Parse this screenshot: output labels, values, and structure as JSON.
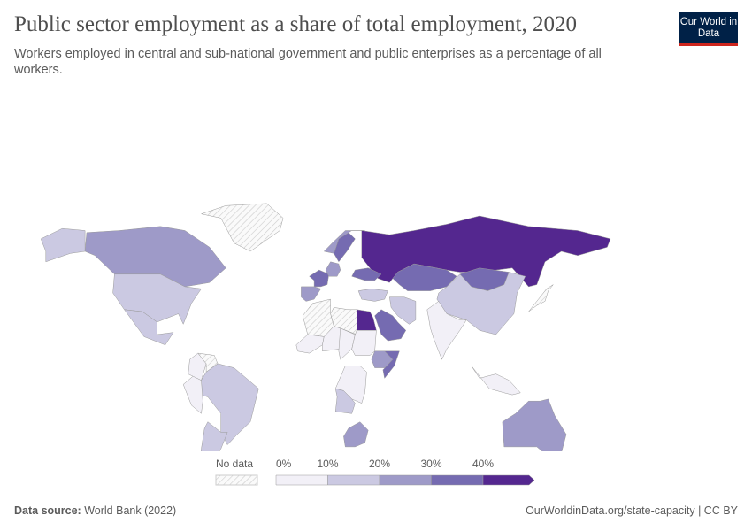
{
  "header": {
    "title": "Public sector employment as a share of total employment, 2020",
    "subtitle": "Workers employed in central and sub-national government and public enterprises as a percentage of all workers.",
    "logo": "Our World in Data"
  },
  "legend": {
    "no_data_label": "No data",
    "ticks": [
      "0%",
      "10%",
      "20%",
      "30%",
      "40%"
    ],
    "colors": [
      "#f2f0f7",
      "#cbc9e2",
      "#9e9ac8",
      "#756bb1",
      "#54278f"
    ],
    "no_data_color": "#e8e8e8"
  },
  "countries": [
    {
      "name": "Russia",
      "bin": 4
    },
    {
      "name": "Kazakhstan",
      "bin": 3
    },
    {
      "name": "Mongolia",
      "bin": 3
    },
    {
      "name": "China",
      "bin": 1
    },
    {
      "name": "India",
      "bin": 0
    },
    {
      "name": "Canada",
      "bin": 2
    },
    {
      "name": "United States",
      "bin": 1
    },
    {
      "name": "Alaska",
      "bin": 1
    },
    {
      "name": "Mexico",
      "bin": 1
    },
    {
      "name": "Greenland",
      "bin": -1
    },
    {
      "name": "Brazil",
      "bin": 1
    },
    {
      "name": "Argentina",
      "bin": 1
    },
    {
      "name": "Peru",
      "bin": 0
    },
    {
      "name": "Colombia",
      "bin": 0
    },
    {
      "name": "Venezuela",
      "bin": -1
    },
    {
      "name": "Australia",
      "bin": 2
    },
    {
      "name": "Egypt",
      "bin": 4
    },
    {
      "name": "Saudi Arabia",
      "bin": 3
    },
    {
      "name": "Iran",
      "bin": 1
    },
    {
      "name": "Libya",
      "bin": -1
    },
    {
      "name": "Algeria",
      "bin": -1
    },
    {
      "name": "Mali",
      "bin": 0
    },
    {
      "name": "Niger",
      "bin": 0
    },
    {
      "name": "Chad",
      "bin": 0
    },
    {
      "name": "Sudan",
      "bin": 0
    },
    {
      "name": "DR Congo",
      "bin": 0
    },
    {
      "name": "Angola",
      "bin": 1
    },
    {
      "name": "South Africa",
      "bin": 2
    },
    {
      "name": "Ethiopia",
      "bin": 2
    },
    {
      "name": "Somalia",
      "bin": 3
    },
    {
      "name": "Sweden",
      "bin": 3
    },
    {
      "name": "Norway",
      "bin": 2
    },
    {
      "name": "France",
      "bin": 3
    },
    {
      "name": "Spain",
      "bin": 2
    },
    {
      "name": "Germany",
      "bin": 2
    },
    {
      "name": "Ukraine",
      "bin": 3
    },
    {
      "name": "Turkey",
      "bin": 1
    },
    {
      "name": "Indonesia",
      "bin": 0
    },
    {
      "name": "Japan",
      "bin": -1
    }
  ],
  "footer": {
    "source_label": "Data source:",
    "source": "World Bank (2022)",
    "link": "OurWorldinData.org/state-capacity | CC BY"
  }
}
